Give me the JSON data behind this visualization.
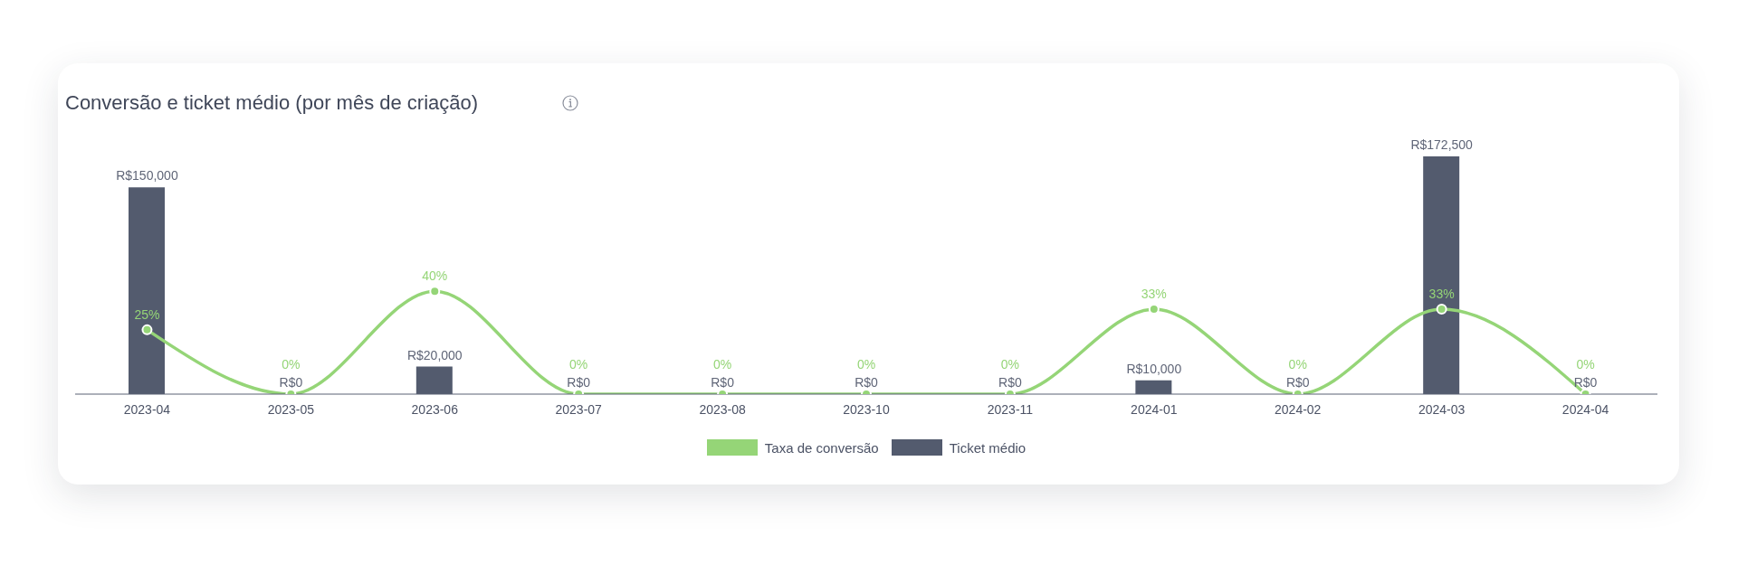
{
  "chart_data": {
    "type": "bar",
    "title": "Conversão e ticket médio (por mês de criação)",
    "categories": [
      "2023-04",
      "2023-05",
      "2023-06",
      "2023-07",
      "2023-08",
      "2023-10",
      "2023-11",
      "2024-01",
      "2024-02",
      "2024-03",
      "2024-04"
    ],
    "series": [
      {
        "name": "Taxa de conversão",
        "type": "line",
        "axis": "y2",
        "color": "#95d577",
        "values": [
          25,
          0,
          40,
          0,
          0,
          0,
          0,
          33,
          0,
          33,
          0
        ],
        "value_labels": [
          "25%",
          "0%",
          "40%",
          "0%",
          "0%",
          "0%",
          "0%",
          "33%",
          "0%",
          "33%",
          "0%"
        ]
      },
      {
        "name": "Ticket médio",
        "color": "#535b6e",
        "values": [
          150000,
          0,
          20000,
          0,
          0,
          0,
          0,
          10000,
          0,
          172500,
          0
        ],
        "value_labels": [
          "R$150,000",
          "R$0",
          "R$20,000",
          "R$0",
          "R$0",
          "R$0",
          "R$0",
          "R$10,000",
          "R$0",
          "R$172,500",
          "R$0"
        ]
      }
    ],
    "tick_labels": "x",
    "legend": "bottom",
    "marker": "circle",
    "line_style": "solid"
  }
}
